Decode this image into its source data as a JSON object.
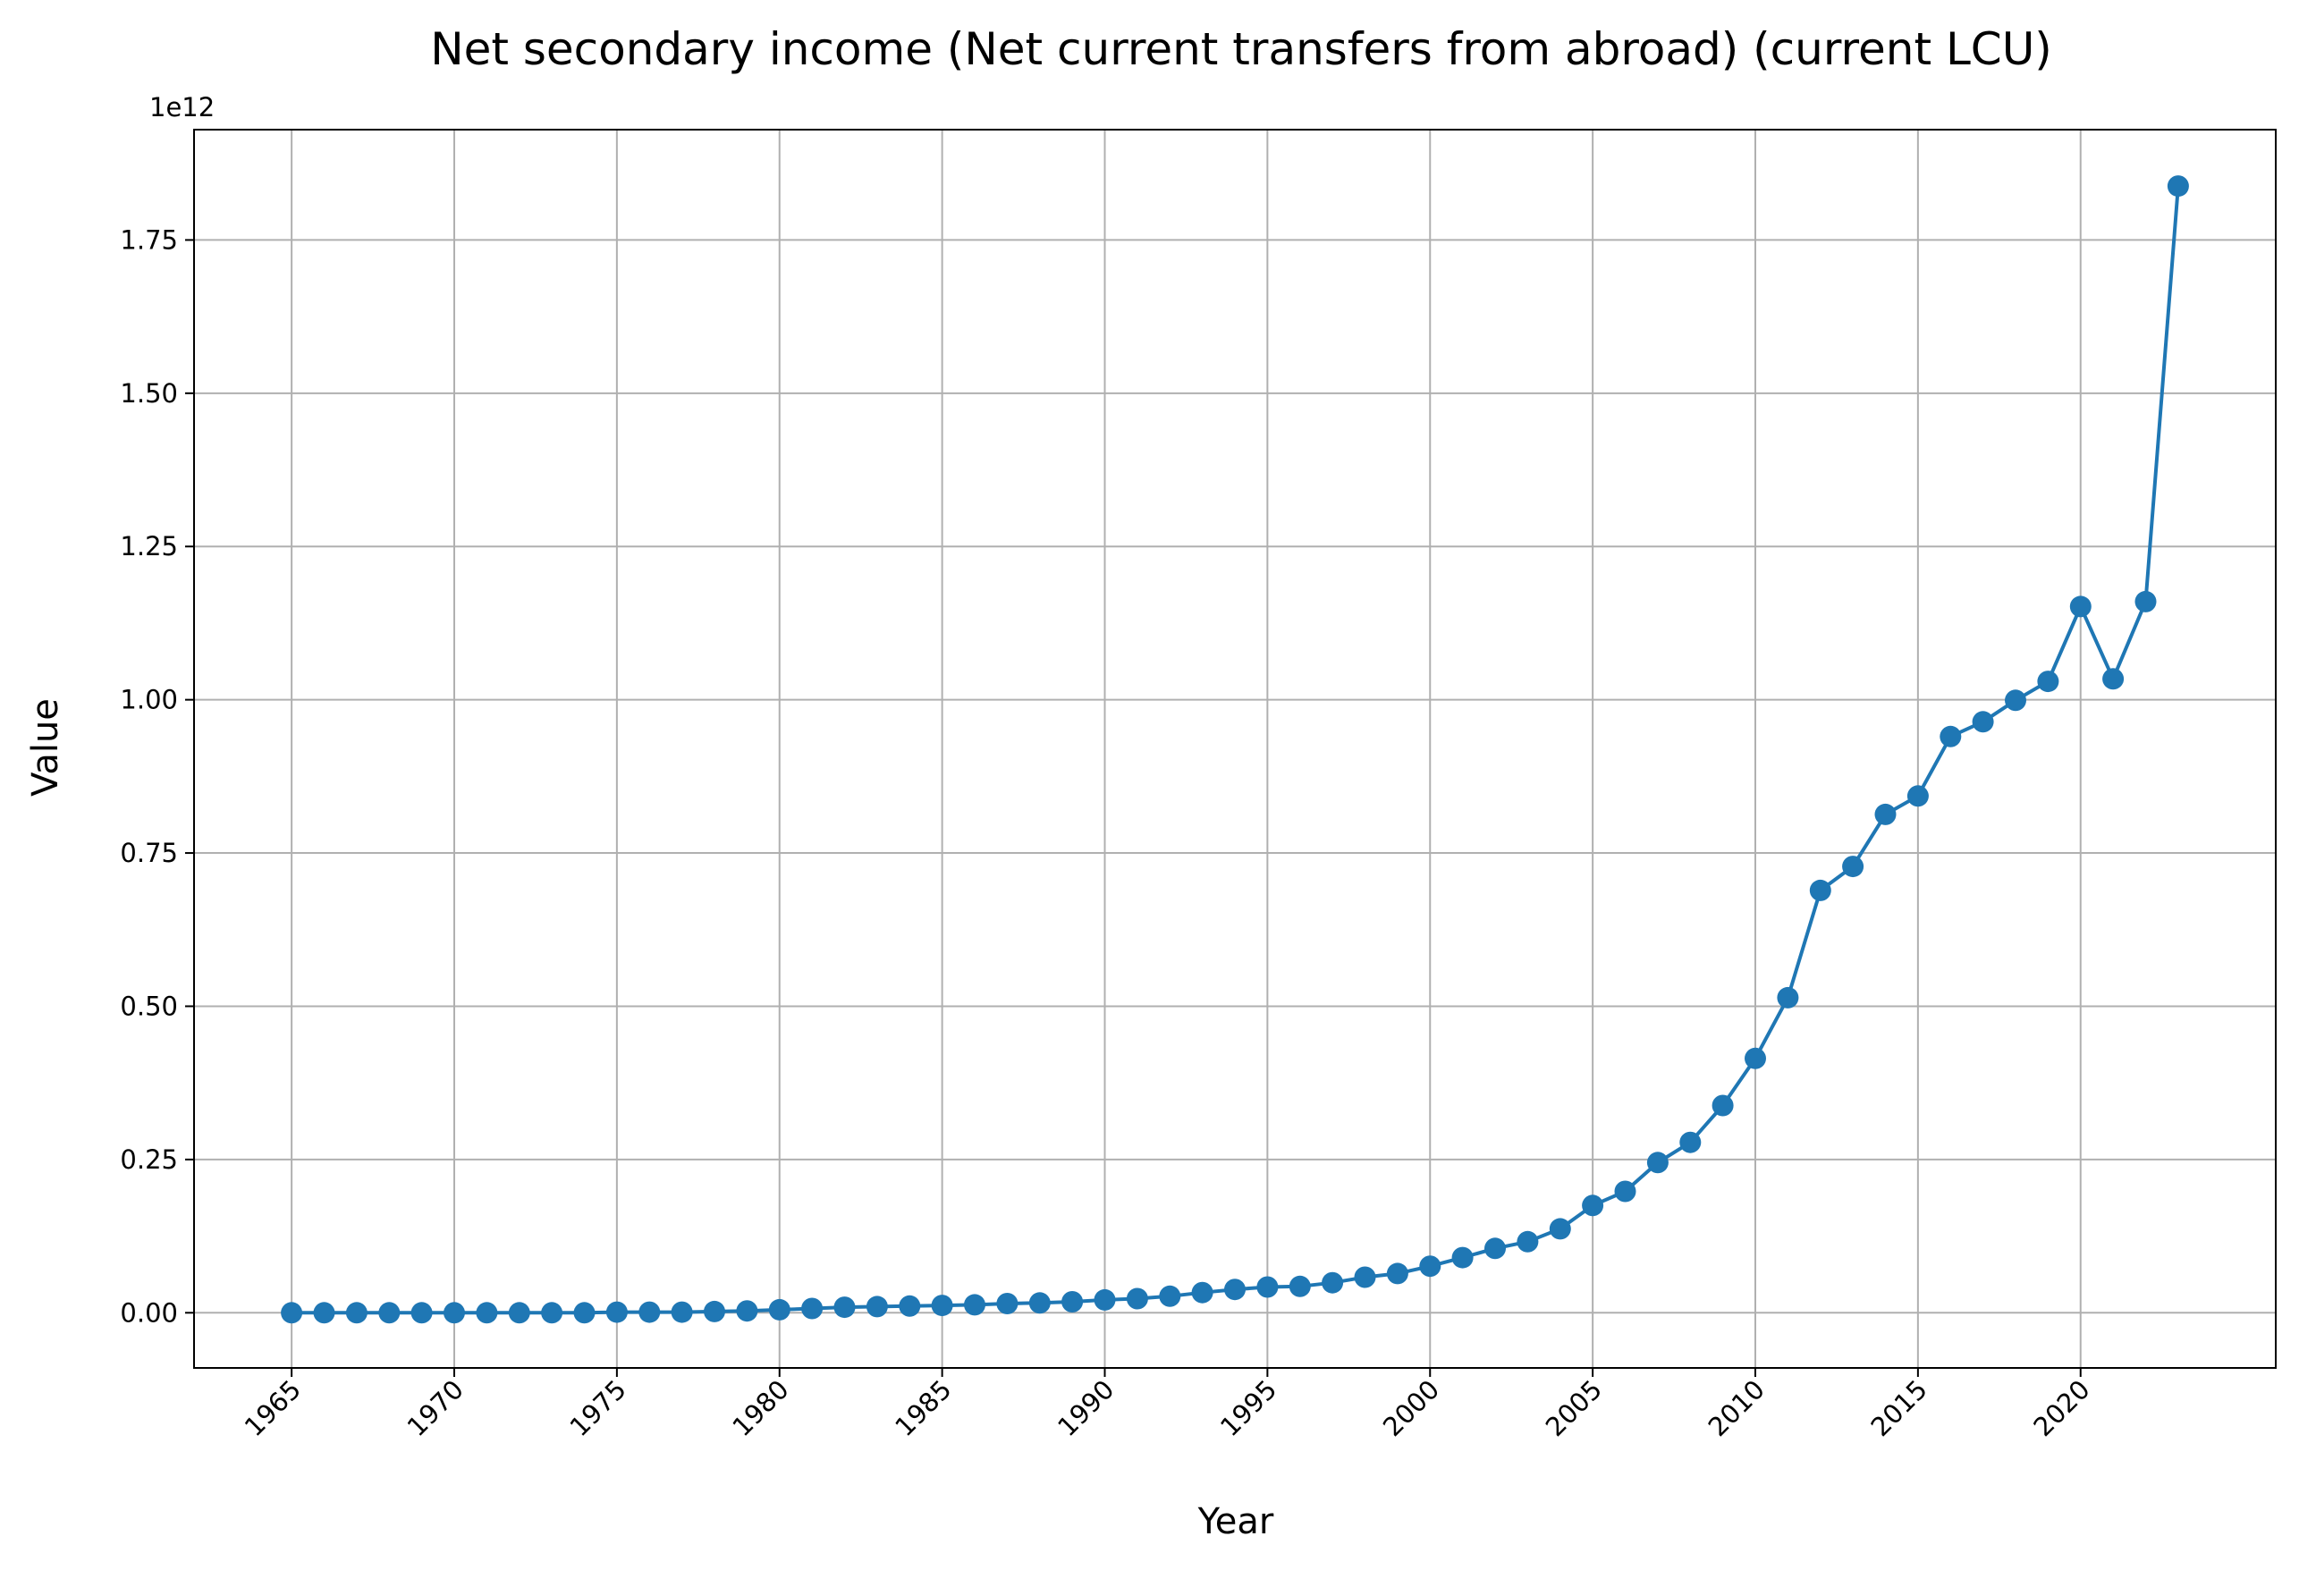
{
  "chart_data": {
    "type": "line",
    "title": "Net secondary income (Net current transfers from abroad) (current LCU)",
    "xlabel": "Year",
    "ylabel": "Value",
    "y_offset_text": "1e12",
    "xlim": [
      1962,
      2026
    ],
    "ylim": [
      -0.09,
      1.93
    ],
    "x_ticks": [
      1965,
      1970,
      1975,
      1980,
      1985,
      1990,
      1995,
      2000,
      2005,
      2010,
      2015,
      2020
    ],
    "y_ticks": [
      0.0,
      0.25,
      0.5,
      0.75,
      1.0,
      1.25,
      1.5,
      1.75
    ],
    "y_tick_labels": [
      "0.00",
      "0.25",
      "0.50",
      "0.75",
      "1.00",
      "1.25",
      "1.50",
      "1.75"
    ],
    "grid": true,
    "color": "#1f77b4",
    "marker": "circle",
    "x": [
      1965,
      1966,
      1967,
      1968,
      1969,
      1970,
      1971,
      1972,
      1973,
      1974,
      1975,
      1976,
      1977,
      1978,
      1979,
      1980,
      1981,
      1982,
      1983,
      1984,
      1985,
      1986,
      1987,
      1988,
      1989,
      1990,
      1991,
      1992,
      1993,
      1994,
      1995,
      1996,
      1997,
      1998,
      1999,
      2000,
      2001,
      2002,
      2003,
      2004,
      2005,
      2006,
      2007,
      2008,
      2009,
      2010,
      2011,
      2012,
      2013,
      2014,
      2015,
      2016,
      2017,
      2018,
      2019,
      2020,
      2021,
      2022,
      2023
    ],
    "series": [
      {
        "values": [
          0.0,
          0.0,
          0.0,
          0.0,
          0.0,
          0.0,
          0.0,
          0.0,
          0.0,
          0.0,
          0.001,
          0.001,
          0.001,
          0.002,
          0.003,
          0.005,
          0.007,
          0.009,
          0.01,
          0.011,
          0.012,
          0.013,
          0.015,
          0.016,
          0.018,
          0.021,
          0.023,
          0.027,
          0.033,
          0.038,
          0.042,
          0.043,
          0.049,
          0.058,
          0.064,
          0.076,
          0.09,
          0.105,
          0.116,
          0.137,
          0.175,
          0.198,
          0.245,
          0.278,
          0.338,
          0.415,
          0.514,
          0.689,
          0.728,
          0.813,
          0.843,
          0.94,
          0.964,
          0.999,
          1.03,
          1.152,
          1.034,
          1.16,
          1.838
        ]
      }
    ]
  }
}
